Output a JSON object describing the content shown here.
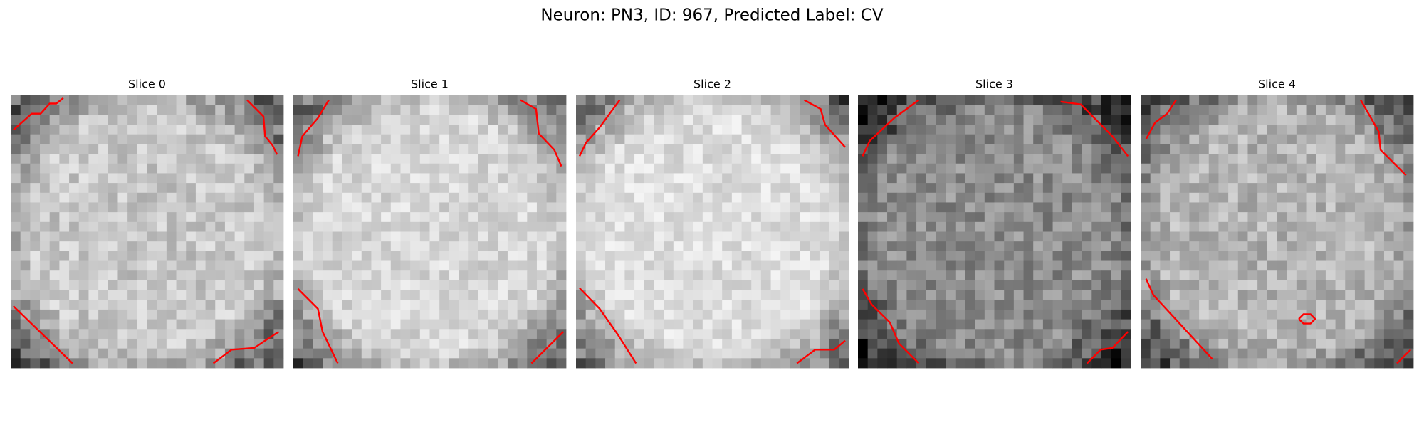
{
  "header": {
    "title": "Neuron: PN3, ID: 967, Predicted Label: CV"
  },
  "panels": [
    {
      "title": "Slice 0"
    },
    {
      "title": "Slice 1"
    },
    {
      "title": "Slice 2"
    },
    {
      "title": "Slice 3"
    },
    {
      "title": "Slice 4"
    }
  ]
}
